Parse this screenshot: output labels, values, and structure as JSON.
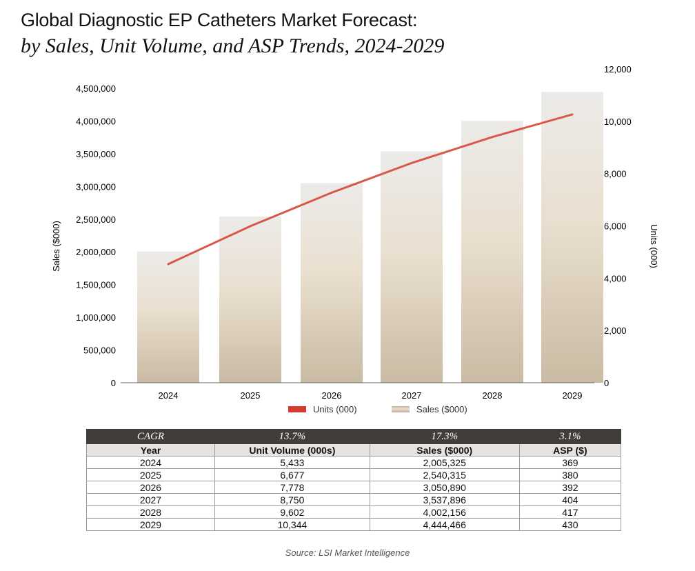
{
  "title_line1": "Global Diagnostic EP Catheters Market Forecast:",
  "title_line2": "by Sales, Unit Volume, and ASP Trends, 2024-2029",
  "chart_data": {
    "type": "bar+line",
    "categories": [
      "2024",
      "2025",
      "2026",
      "2027",
      "2028",
      "2029"
    ],
    "series": [
      {
        "name": "Sales ($000)",
        "type": "bar",
        "axis": "left",
        "values": [
          2005325,
          2540315,
          3050890,
          3537896,
          4002156,
          4444466
        ]
      },
      {
        "name": "Units (000)",
        "type": "line",
        "axis": "right",
        "values": [
          5433,
          6677,
          7778,
          8750,
          9602,
          10344
        ]
      }
    ],
    "ylabel": "Sales ($000)",
    "y2label": "Units (000)",
    "ylim": [
      0,
      4500000
    ],
    "y2lim": [
      0,
      12000
    ],
    "yticks": [
      "0",
      "500,000",
      "1,000,000",
      "1,500,000",
      "2,000,000",
      "2,500,000",
      "3,000,000",
      "3,500,000",
      "4,000,000",
      "4,500,000"
    ],
    "yticks_values": [
      0,
      500000,
      1000000,
      1500000,
      2000000,
      2500000,
      3000000,
      3500000,
      4000000,
      4500000
    ],
    "y2ticks": [
      "0",
      "2,000",
      "4,000",
      "6,000",
      "8,000",
      "10,000",
      "12,000"
    ],
    "y2ticks_values": [
      0,
      2000,
      4000,
      6000,
      8000,
      10000,
      12000
    ],
    "legend": [
      "Units (000)",
      "Sales ($000)"
    ],
    "legend_position": "bottom",
    "colors": {
      "line": "#d9574a",
      "bar_top": "#ecebe9",
      "bar_mid": "#eadfcf",
      "bar_bottom": "#c9bba3",
      "legend_units": "#d63a2f"
    }
  },
  "table": {
    "cagr_row": [
      "CAGR",
      "13.7%",
      "17.3%",
      "3.1%"
    ],
    "headers": [
      "Year",
      "Unit Volume (000s)",
      "Sales ($000)",
      "ASP ($)"
    ],
    "rows": [
      [
        "2024",
        "5,433",
        "2,005,325",
        "369"
      ],
      [
        "2025",
        "6,677",
        "2,540,315",
        "380"
      ],
      [
        "2026",
        "7,778",
        "3,050,890",
        "392"
      ],
      [
        "2027",
        "8,750",
        "3,537,896",
        "404"
      ],
      [
        "2028",
        "9,602",
        "4,002,156",
        "417"
      ],
      [
        "2029",
        "10,344",
        "4,444,466",
        "430"
      ]
    ]
  },
  "source": "Source: LSI Market Intelligence"
}
